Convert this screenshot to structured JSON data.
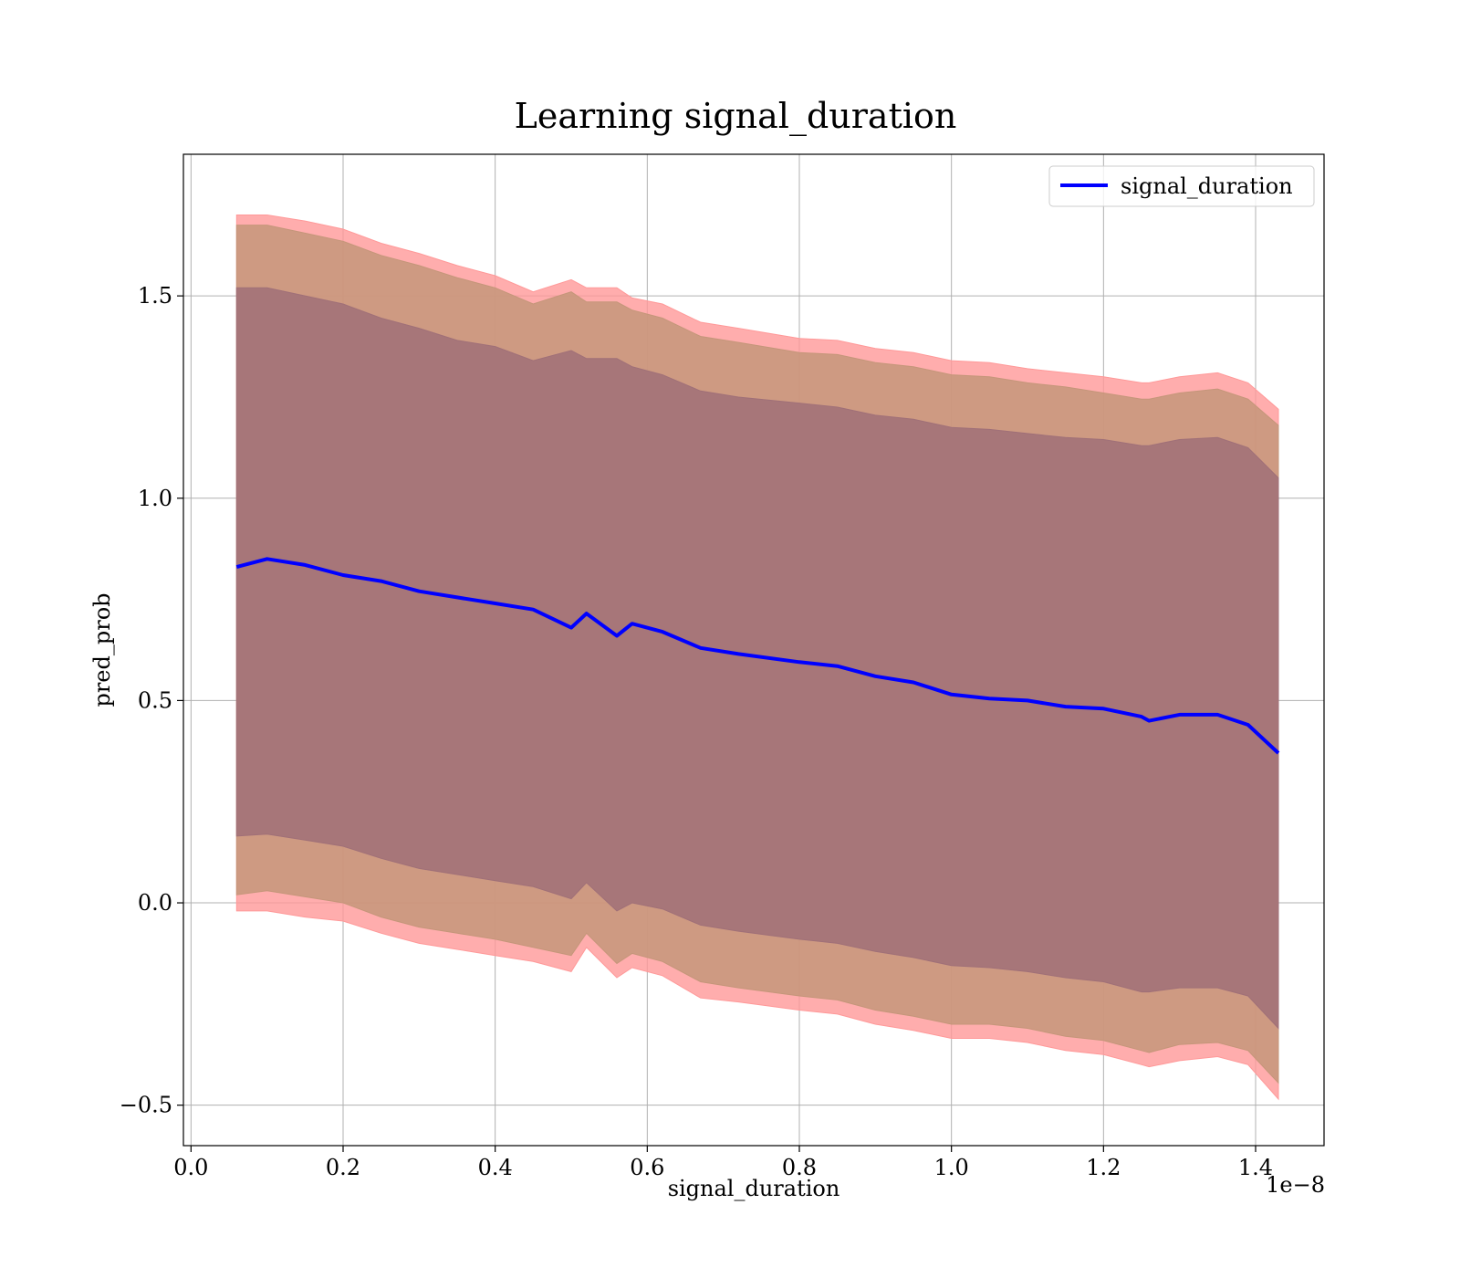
{
  "chart_data": {
    "type": "area",
    "title": "Learning signal_duration",
    "xlabel": "signal_duration",
    "ylabel": "pred_prob",
    "x_offset_text": "1e−8",
    "xlim": [
      -1e-10,
      1.49e-08
    ],
    "ylim": [
      -0.6,
      1.85
    ],
    "xticks": [
      0.0,
      2e-09,
      4e-09,
      6e-09,
      8e-09,
      1e-08,
      1.2e-08,
      1.4e-08
    ],
    "xtick_labels": [
      "0.0",
      "0.2",
      "0.4",
      "0.6",
      "0.8",
      "1.0",
      "1.2",
      "1.4"
    ],
    "yticks": [
      -0.5,
      0.0,
      0.5,
      1.0,
      1.5
    ],
    "ytick_labels": [
      "−0.5",
      "0.0",
      "0.5",
      "1.0",
      "1.5"
    ],
    "grid": true,
    "legend": {
      "position": "top-right",
      "entries": [
        "signal_duration"
      ]
    },
    "colors": {
      "line": "#0000ff",
      "band_outer": "#ff9999",
      "band_middle": "#c5967a",
      "band_inner": "#a07078"
    },
    "x": [
      6e-10,
      1e-09,
      1.5e-09,
      2e-09,
      2.5e-09,
      3e-09,
      3.5e-09,
      4e-09,
      4.5e-09,
      5e-09,
      5.2e-09,
      5.6e-09,
      5.8e-09,
      6.2e-09,
      6.7e-09,
      7.2e-09,
      8e-09,
      8.5e-09,
      9e-09,
      9.5e-09,
      1e-08,
      1.05e-08,
      1.1e-08,
      1.15e-08,
      1.2e-08,
      1.25e-08,
      1.26e-08,
      1.3e-08,
      1.35e-08,
      1.39e-08,
      1.43e-08
    ],
    "series": [
      {
        "name": "signal_duration",
        "values": [
          0.83,
          0.85,
          0.835,
          0.81,
          0.795,
          0.77,
          0.755,
          0.74,
          0.725,
          0.68,
          0.715,
          0.66,
          0.69,
          0.67,
          0.63,
          0.615,
          0.595,
          0.585,
          0.56,
          0.545,
          0.515,
          0.505,
          0.5,
          0.485,
          0.48,
          0.46,
          0.45,
          0.465,
          0.465,
          0.44,
          0.37
        ]
      }
    ],
    "bands": [
      {
        "upper": [
          1.7,
          1.7,
          1.685,
          1.665,
          1.63,
          1.605,
          1.575,
          1.55,
          1.51,
          1.54,
          1.52,
          1.52,
          1.495,
          1.48,
          1.435,
          1.42,
          1.395,
          1.39,
          1.37,
          1.36,
          1.34,
          1.335,
          1.32,
          1.31,
          1.3,
          1.285,
          1.285,
          1.3,
          1.31,
          1.285,
          1.22
        ],
        "lower": [
          -0.02,
          -0.02,
          -0.035,
          -0.045,
          -0.075,
          -0.1,
          -0.115,
          -0.13,
          -0.145,
          -0.17,
          -0.11,
          -0.185,
          -0.16,
          -0.18,
          -0.235,
          -0.245,
          -0.265,
          -0.275,
          -0.3,
          -0.315,
          -0.335,
          -0.335,
          -0.345,
          -0.365,
          -0.375,
          -0.4,
          -0.405,
          -0.39,
          -0.38,
          -0.4,
          -0.485
        ]
      },
      {
        "upper": [
          1.675,
          1.675,
          1.655,
          1.635,
          1.6,
          1.575,
          1.545,
          1.52,
          1.48,
          1.51,
          1.485,
          1.485,
          1.465,
          1.445,
          1.4,
          1.385,
          1.36,
          1.355,
          1.335,
          1.325,
          1.305,
          1.3,
          1.285,
          1.275,
          1.26,
          1.245,
          1.245,
          1.26,
          1.27,
          1.245,
          1.18
        ],
        "lower": [
          0.02,
          0.03,
          0.015,
          0.0,
          -0.035,
          -0.06,
          -0.075,
          -0.09,
          -0.11,
          -0.13,
          -0.075,
          -0.15,
          -0.125,
          -0.145,
          -0.195,
          -0.21,
          -0.23,
          -0.24,
          -0.265,
          -0.28,
          -0.3,
          -0.3,
          -0.31,
          -0.33,
          -0.34,
          -0.365,
          -0.37,
          -0.35,
          -0.345,
          -0.365,
          -0.445
        ]
      },
      {
        "upper": [
          1.52,
          1.52,
          1.5,
          1.48,
          1.445,
          1.42,
          1.39,
          1.375,
          1.34,
          1.365,
          1.345,
          1.345,
          1.325,
          1.305,
          1.265,
          1.25,
          1.235,
          1.225,
          1.205,
          1.195,
          1.175,
          1.17,
          1.16,
          1.15,
          1.145,
          1.13,
          1.13,
          1.145,
          1.15,
          1.125,
          1.05
        ],
        "lower": [
          0.165,
          0.17,
          0.155,
          0.14,
          0.11,
          0.085,
          0.07,
          0.055,
          0.04,
          0.01,
          0.05,
          -0.02,
          0.0,
          -0.015,
          -0.055,
          -0.07,
          -0.09,
          -0.1,
          -0.12,
          -0.135,
          -0.155,
          -0.16,
          -0.17,
          -0.185,
          -0.195,
          -0.22,
          -0.22,
          -0.21,
          -0.21,
          -0.23,
          -0.31
        ]
      }
    ]
  }
}
